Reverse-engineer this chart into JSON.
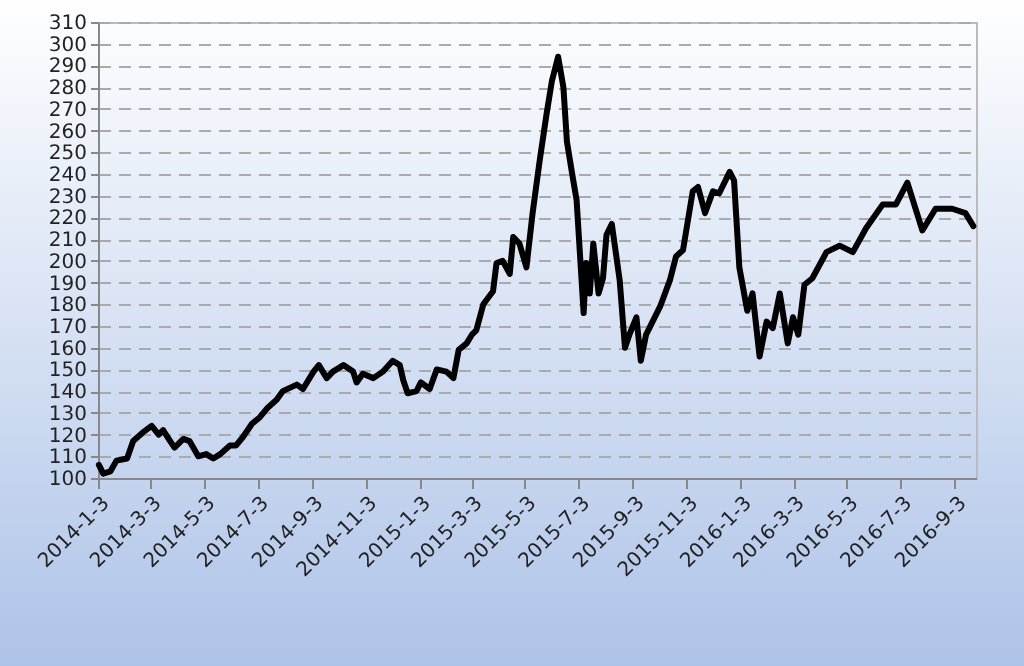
{
  "chart_data": {
    "type": "line",
    "x": [
      "2014-01-04",
      "2014-01-09",
      "2014-01-17",
      "2014-01-24",
      "2014-02-05",
      "2014-02-12",
      "2014-02-23",
      "2014-03-05",
      "2014-03-13",
      "2014-03-18",
      "2014-03-26",
      "2014-03-31",
      "2014-04-10",
      "2014-04-17",
      "2014-04-27",
      "2014-05-06",
      "2014-05-14",
      "2014-05-22",
      "2014-06-02",
      "2014-06-09",
      "2014-06-17",
      "2014-06-27",
      "2014-07-06",
      "2014-07-14",
      "2014-07-25",
      "2014-08-01",
      "2014-08-17",
      "2014-08-24",
      "2014-09-05",
      "2014-09-11",
      "2014-09-20",
      "2014-09-27",
      "2014-10-09",
      "2014-10-20",
      "2014-10-24",
      "2014-10-31",
      "2014-11-12",
      "2014-11-23",
      "2014-12-04",
      "2014-12-12",
      "2014-12-16",
      "2014-12-21",
      "2014-12-31",
      "2015-01-05",
      "2015-01-15",
      "2015-01-23",
      "2015-02-03",
      "2015-02-11",
      "2015-02-17",
      "2015-02-26",
      "2015-03-04",
      "2015-03-09",
      "2015-03-17",
      "2015-03-28",
      "2015-04-01",
      "2015-04-08",
      "2015-04-16",
      "2015-04-20",
      "2015-04-27",
      "2015-05-05",
      "2015-05-12",
      "2015-05-20",
      "2015-05-28",
      "2015-06-03",
      "2015-06-10",
      "2015-06-16",
      "2015-06-20",
      "2015-06-26",
      "2015-07-01",
      "2015-07-05",
      "2015-07-09",
      "2015-07-12",
      "2015-07-16",
      "2015-07-20",
      "2015-07-26",
      "2015-07-31",
      "2015-08-04",
      "2015-08-10",
      "2015-08-19",
      "2015-08-25",
      "2015-08-30",
      "2015-09-07",
      "2015-09-12",
      "2015-09-18",
      "2015-10-04",
      "2015-10-15",
      "2015-10-22",
      "2015-10-30",
      "2015-11-10",
      "2015-11-16",
      "2015-11-24",
      "2015-12-03",
      "2015-12-10",
      "2015-12-22",
      "2015-12-27",
      "2016-01-02",
      "2016-01-11",
      "2016-01-17",
      "2016-01-25",
      "2016-02-02",
      "2016-02-09",
      "2016-02-17",
      "2016-02-26",
      "2016-03-03",
      "2016-03-09",
      "2016-03-16",
      "2016-03-25",
      "2016-04-10",
      "2016-04-25",
      "2016-05-10",
      "2016-05-25",
      "2016-06-13",
      "2016-06-28",
      "2016-07-11",
      "2016-07-28",
      "2016-08-12",
      "2016-08-31",
      "2016-09-15",
      "2016-09-24"
    ],
    "series": [
      {
        "color": "#000000",
        "values": [
          106,
          102,
          103,
          108,
          109,
          117,
          121,
          124,
          120,
          122,
          117,
          114,
          118,
          117,
          110,
          111,
          109,
          111,
          115,
          115,
          119,
          125,
          128,
          132,
          136,
          140,
          143,
          141,
          149,
          152,
          146,
          149,
          152,
          149,
          144,
          148,
          146,
          149,
          154,
          152,
          145,
          139,
          140,
          144,
          141,
          150,
          149,
          146,
          159,
          162,
          166,
          168,
          180,
          186,
          199,
          200,
          194,
          211,
          208,
          197,
          222,
          246,
          268,
          283,
          294,
          280,
          255,
          240,
          228,
          202,
          176,
          199,
          185,
          208,
          185,
          192,
          212,
          217,
          191,
          160,
          166,
          174,
          154,
          166,
          179,
          191,
          202,
          205,
          232,
          234,
          222,
          232,
          231,
          241,
          237,
          197,
          177,
          185,
          156,
          172,
          169,
          185,
          162,
          174,
          166,
          189,
          192,
          204,
          207,
          204,
          215,
          226,
          226,
          236,
          214,
          224,
          224,
          222,
          216
        ]
      }
    ],
    "xlim": [
      "2014-01-03",
      "2016-09-27"
    ],
    "xticks": [
      {
        "value": "2014-01-03",
        "label": "2014-1-3"
      },
      {
        "value": "2014-03-03",
        "label": "2014-3-3"
      },
      {
        "value": "2014-05-03",
        "label": "2014-5-3"
      },
      {
        "value": "2014-07-03",
        "label": "2014-7-3"
      },
      {
        "value": "2014-09-03",
        "label": "2014-9-3"
      },
      {
        "value": "2014-11-03",
        "label": "2014-11-3"
      },
      {
        "value": "2015-01-03",
        "label": "2015-1-3"
      },
      {
        "value": "2015-03-03",
        "label": "2015-3-3"
      },
      {
        "value": "2015-05-03",
        "label": "2015-5-3"
      },
      {
        "value": "2015-07-03",
        "label": "2015-7-3"
      },
      {
        "value": "2015-09-03",
        "label": "2015-9-3"
      },
      {
        "value": "2015-11-03",
        "label": "2015-11-3"
      },
      {
        "value": "2016-01-03",
        "label": "2016-1-3"
      },
      {
        "value": "2016-03-03",
        "label": "2016-3-3"
      },
      {
        "value": "2016-05-03",
        "label": "2016-5-3"
      },
      {
        "value": "2016-07-03",
        "label": "2016-7-3"
      },
      {
        "value": "2016-09-03",
        "label": "2016-9-3"
      }
    ],
    "ylim": [
      100,
      310
    ],
    "yticks": [
      100,
      110,
      120,
      130,
      140,
      150,
      160,
      170,
      180,
      190,
      200,
      210,
      220,
      230,
      240,
      250,
      260,
      270,
      280,
      290,
      300,
      310
    ],
    "grid": "y",
    "marker": "none",
    "line_style": "solid"
  }
}
